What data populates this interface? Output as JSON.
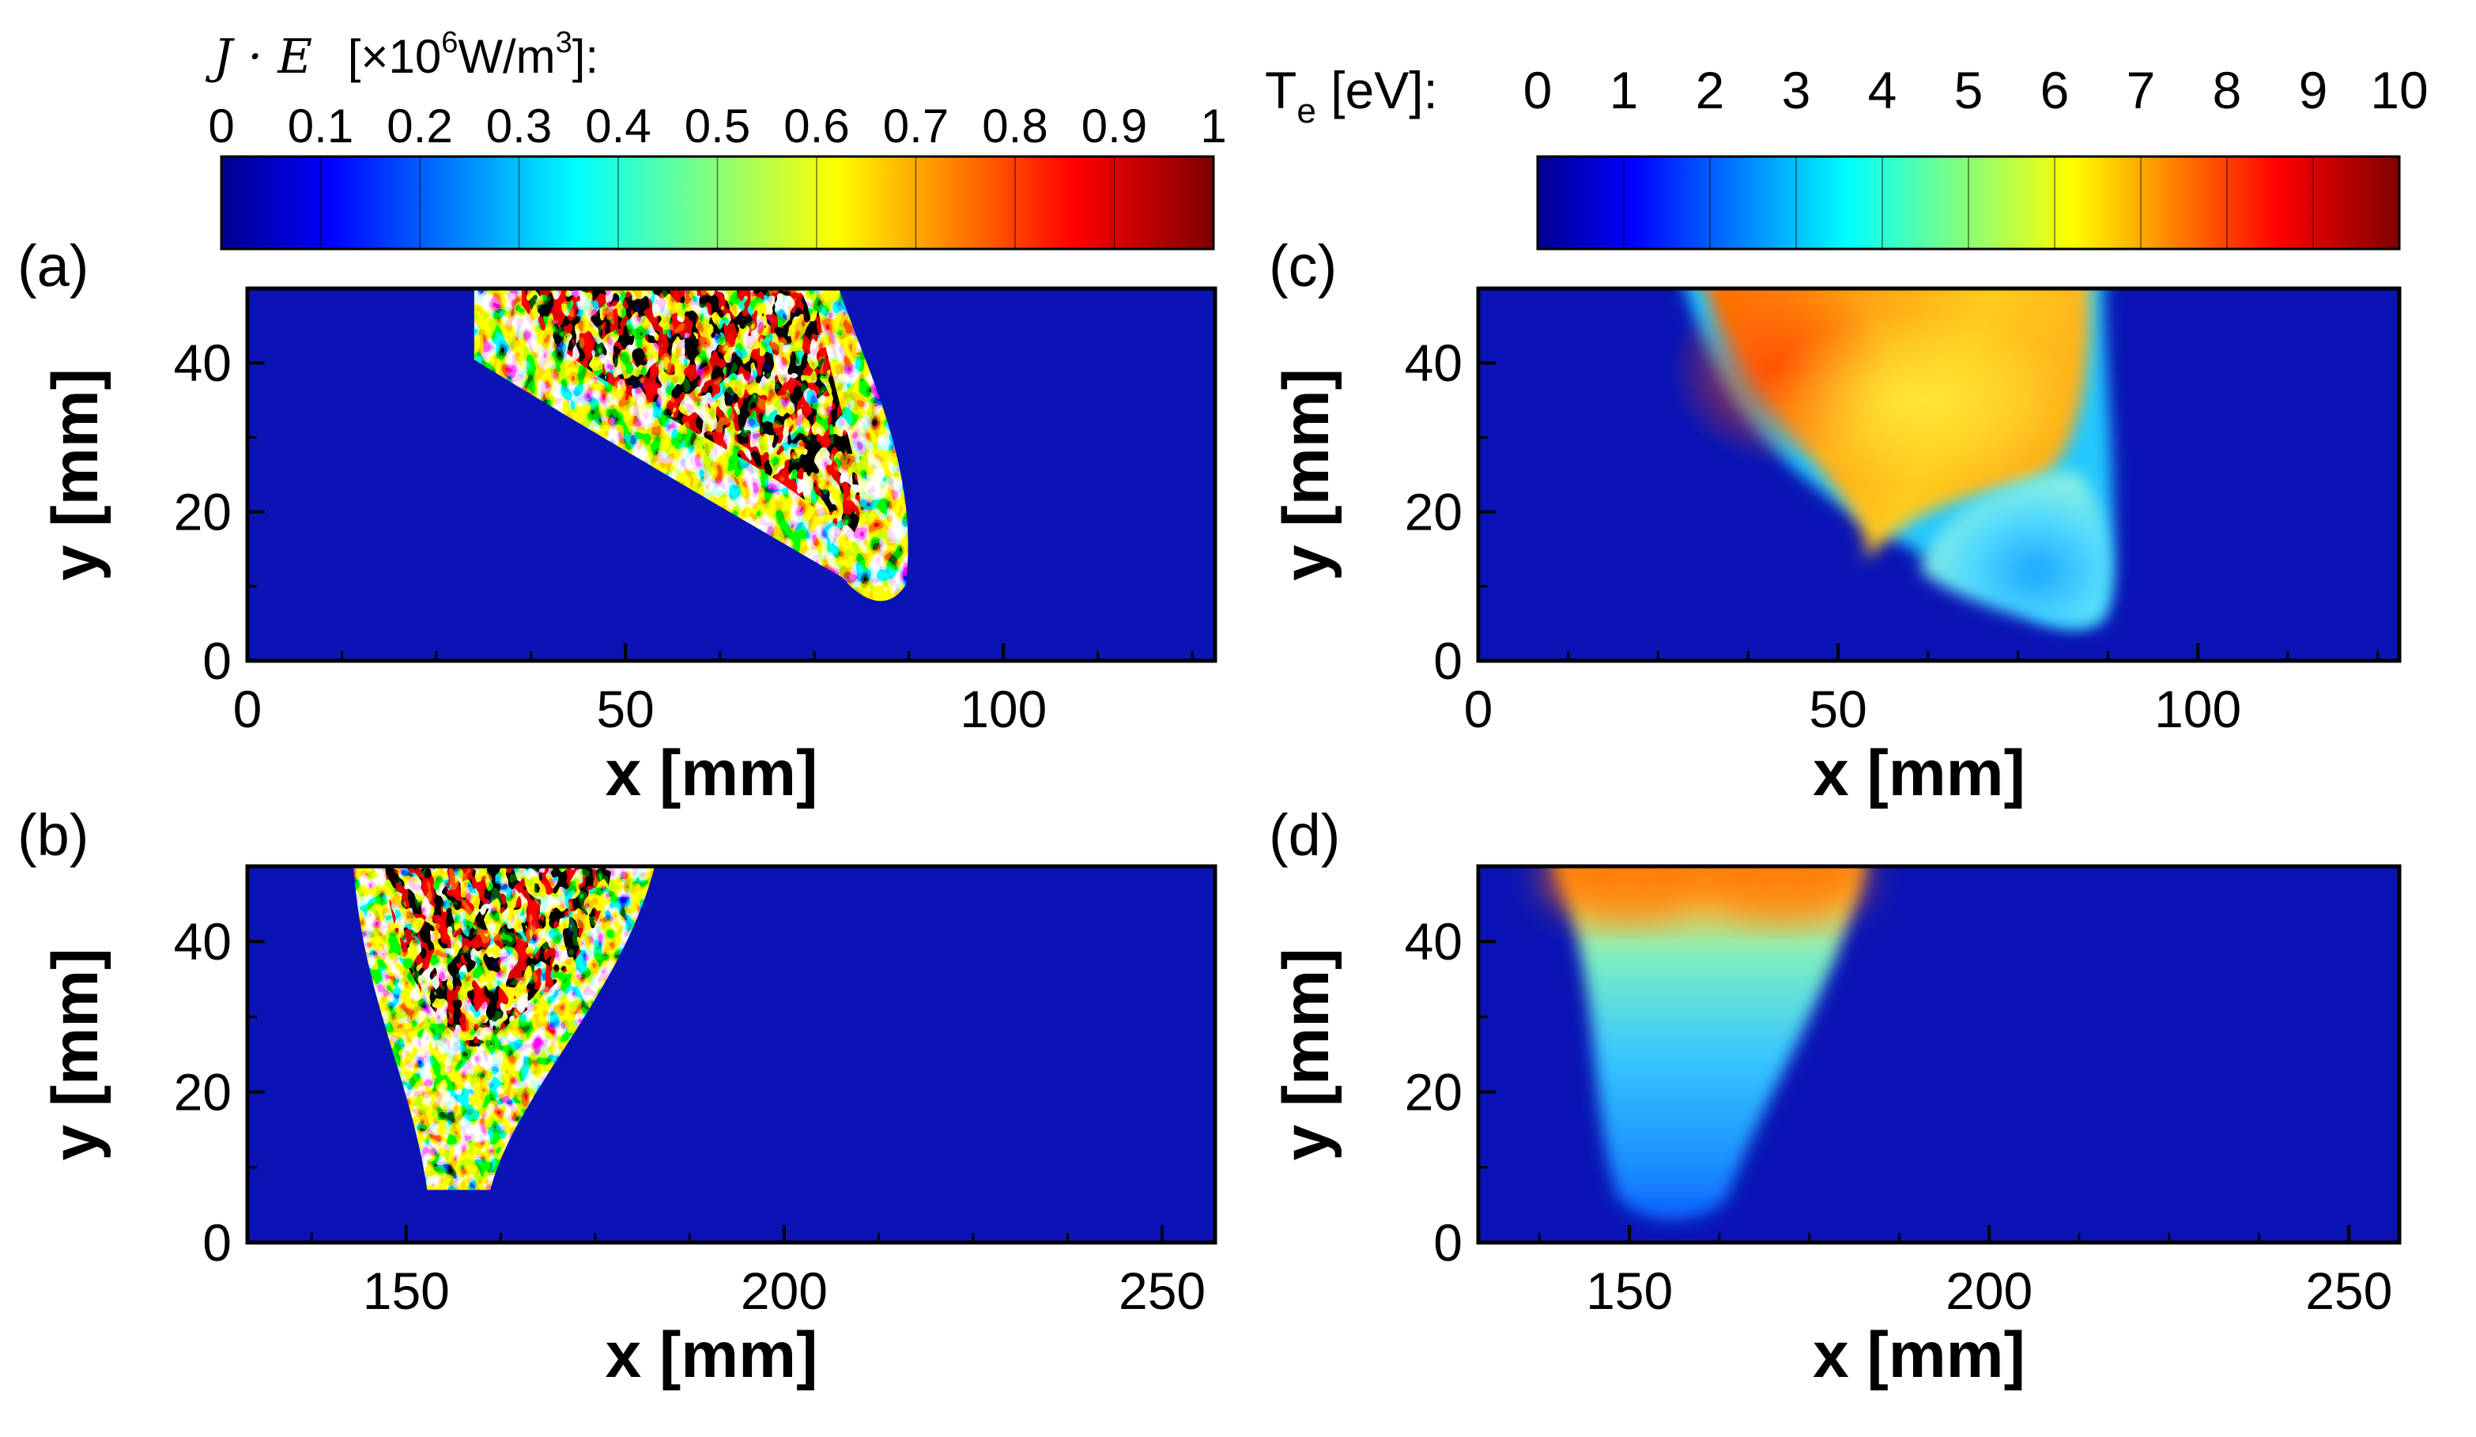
{
  "chart_data": {
    "type": "heatmap",
    "colorbars": [
      {
        "id": "je",
        "title_symbol": "J · E",
        "title_unit_prefix": "[×10",
        "title_unit_exp": "6",
        "title_unit_mid": "W/m",
        "title_unit_exp2": "3",
        "title_unit_suffix": "]:",
        "ticks": [
          "0",
          "0.1",
          "0.2",
          "0.3",
          "0.4",
          "0.5",
          "0.6",
          "0.7",
          "0.8",
          "0.9",
          "1"
        ],
        "range": [
          0,
          1
        ]
      },
      {
        "id": "te",
        "title_main": "T",
        "title_sub": "e",
        "title_unit": " [eV]:",
        "ticks": [
          "0",
          "1",
          "2",
          "3",
          "4",
          "5",
          "6",
          "7",
          "8",
          "9",
          "10"
        ],
        "range": [
          0,
          10
        ]
      }
    ],
    "panels": [
      {
        "id": "a",
        "label": "(a)",
        "quantity": "J·E",
        "xlabel": "x [mm]",
        "ylabel": "y [mm]",
        "xlim": [
          0,
          128
        ],
        "ylim": [
          0,
          50
        ],
        "xticks": [
          0,
          50,
          100
        ],
        "yticks": [
          0,
          20,
          40
        ],
        "regions": [
          {
            "shape": "speckle-wedge",
            "apex_x": 86,
            "apex_y": 8,
            "top_x0": 30,
            "top_x1": 76,
            "intensity": "high",
            "peak_y": [
              35,
              50
            ]
          }
        ]
      },
      {
        "id": "b",
        "label": "(b)",
        "quantity": "J·E",
        "xlabel": "x [mm]",
        "ylabel": "y [mm]",
        "xlim": [
          129,
          257
        ],
        "ylim": [
          0,
          50
        ],
        "xticks": [
          150,
          200,
          250
        ],
        "yticks": [
          0,
          20,
          40
        ],
        "regions": [
          {
            "shape": "speckle-cone",
            "bottom_x": 158,
            "bottom_y": 7,
            "top_x0": 143,
            "top_x1": 183,
            "intensity": "high",
            "peak_y": [
              35,
              50
            ]
          }
        ]
      },
      {
        "id": "c",
        "label": "(c)",
        "quantity": "Te",
        "xlabel": "x [mm]",
        "ylabel": "y [mm]",
        "xlim": [
          0,
          128
        ],
        "ylim": [
          0,
          50
        ],
        "xticks": [
          0,
          50,
          100
        ],
        "yticks": [
          0,
          20,
          40
        ],
        "regions": [
          {
            "shape": "hot-wedge",
            "top_x0": 29,
            "top_x1": 86,
            "bottom_x": 84,
            "bottom_y": 5,
            "te_core_eV": 6.5,
            "te_hotspot_eV": 7.5,
            "te_edge_eV": 2
          },
          {
            "shape": "cool-lobe",
            "center_x": 78,
            "center_y": 11,
            "te_eV": 3.5
          }
        ]
      },
      {
        "id": "d",
        "label": "(d)",
        "quantity": "Te",
        "xlabel": "x [mm]",
        "ylabel": "y [mm]",
        "xlim": [
          129,
          257
        ],
        "ylim": [
          0,
          50
        ],
        "xticks": [
          150,
          200,
          250
        ],
        "yticks": [
          0,
          20,
          40
        ],
        "regions": [
          {
            "shape": "cone",
            "top_x0": 140,
            "top_x1": 182,
            "bottom_x": 156,
            "bottom_y": 4,
            "te_top_eV": 7,
            "te_mid_eV": 4,
            "te_bottom_eV": 3
          }
        ]
      }
    ]
  }
}
